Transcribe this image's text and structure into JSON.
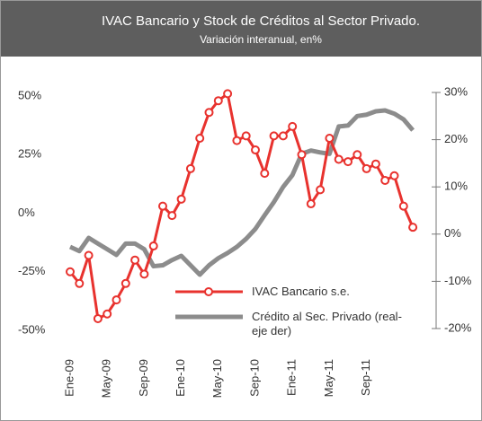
{
  "chart_data": {
    "type": "line",
    "title": "IVAC Bancario y Stock de Créditos al Sector Privado.",
    "subtitle": "Variación interanual, en%",
    "categories": [
      "Ene-09",
      null,
      null,
      null,
      "May-09",
      null,
      null,
      null,
      "Sep-09",
      null,
      null,
      null,
      "Ene-10",
      null,
      null,
      null,
      "May-10",
      null,
      null,
      null,
      "Sep-10",
      null,
      null,
      null,
      "Ene-11",
      null,
      null,
      null,
      "May-11",
      null,
      null,
      null,
      "Sep-11",
      null,
      null,
      null,
      null,
      null
    ],
    "series": [
      {
        "name": "IVAC Bancario s.e.",
        "color": "#e8322e",
        "axis": "y",
        "values": [
          -25,
          -30,
          -18,
          -45,
          -43,
          -37,
          -30,
          -20,
          -26,
          -14,
          3,
          -1,
          6,
          19,
          32,
          43,
          48,
          51,
          31,
          33,
          27,
          17,
          33,
          33,
          37,
          25,
          4,
          10,
          32,
          23,
          22,
          25,
          19,
          21,
          14,
          16,
          3,
          -6
        ]
      },
      {
        "name": "Crédito al Sec. Privado (real-eje der)",
        "color": "#8c8c8c",
        "axis": "y2",
        "values": [
          -2.7,
          -3.6,
          -0.8,
          -2,
          -3.2,
          -4.4,
          -2,
          -2,
          -3.2,
          -6.8,
          -6.6,
          -5.5,
          -4.6,
          -6.6,
          -8.6,
          -6.6,
          -5.1,
          -4,
          -2.7,
          -1,
          1.1,
          4,
          6.8,
          10,
          12.5,
          17,
          17.7,
          17.3,
          17,
          22.8,
          23,
          25,
          25.3,
          26,
          26.2,
          25.5,
          24.3,
          22
        ]
      }
    ],
    "ylim": [
      -50,
      50
    ],
    "yticks": [
      {
        "value": 50,
        "label": "50%"
      },
      {
        "value": 25,
        "label": "25%"
      },
      {
        "value": 0,
        "label": "0%"
      },
      {
        "value": -25,
        "label": "-25%"
      },
      {
        "value": -50,
        "label": "-50%"
      }
    ],
    "y2lim": [
      -20,
      30
    ],
    "y2ticks": [
      {
        "value": 30,
        "label": "30%"
      },
      {
        "value": 20,
        "label": "20%"
      },
      {
        "value": 10,
        "label": "10%"
      },
      {
        "value": 0,
        "label": "0%"
      },
      {
        "value": -10,
        "label": "-10%"
      },
      {
        "value": -20,
        "label": "-20%"
      }
    ]
  }
}
